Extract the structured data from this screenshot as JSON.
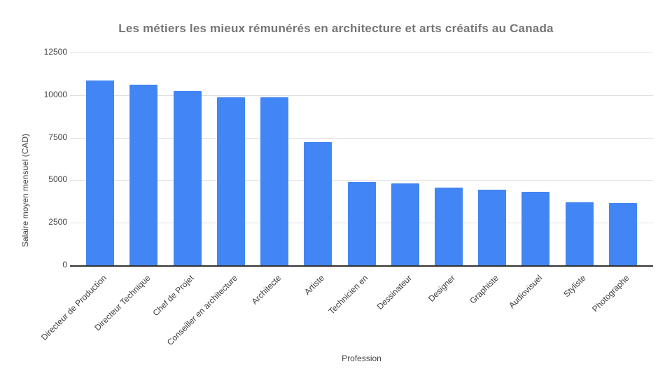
{
  "chart_data": {
    "type": "bar",
    "title": "Les métiers les mieux rémunérés en architecture et arts créatifs au Canada",
    "xlabel": "Profession",
    "ylabel": "Salaire moyen mensuel (CAD)",
    "categories": [
      "Directeur de Production",
      "Directeur Technique",
      "Chef de Projet",
      "Conseiller en architecture",
      "Architecte",
      "Artiste",
      "Technicien en",
      "Dessinateur",
      "Designer",
      "Graphiste",
      "Audiovisuel",
      "Styliste",
      "Photographe"
    ],
    "values": [
      10850,
      10600,
      10250,
      9850,
      9850,
      7250,
      4900,
      4800,
      4550,
      4450,
      4300,
      3700,
      3650
    ],
    "ylim": [
      0,
      12500
    ],
    "yticks": [
      0,
      2500,
      5000,
      7500,
      10000,
      12500
    ],
    "grid": true,
    "legend": "none",
    "colors": {
      "bar": "#4285f4",
      "title": "#757575",
      "tick_label": "#444444",
      "gridline": "#e0e0e0",
      "baseline": "#333333",
      "background": "#ffffff"
    }
  }
}
